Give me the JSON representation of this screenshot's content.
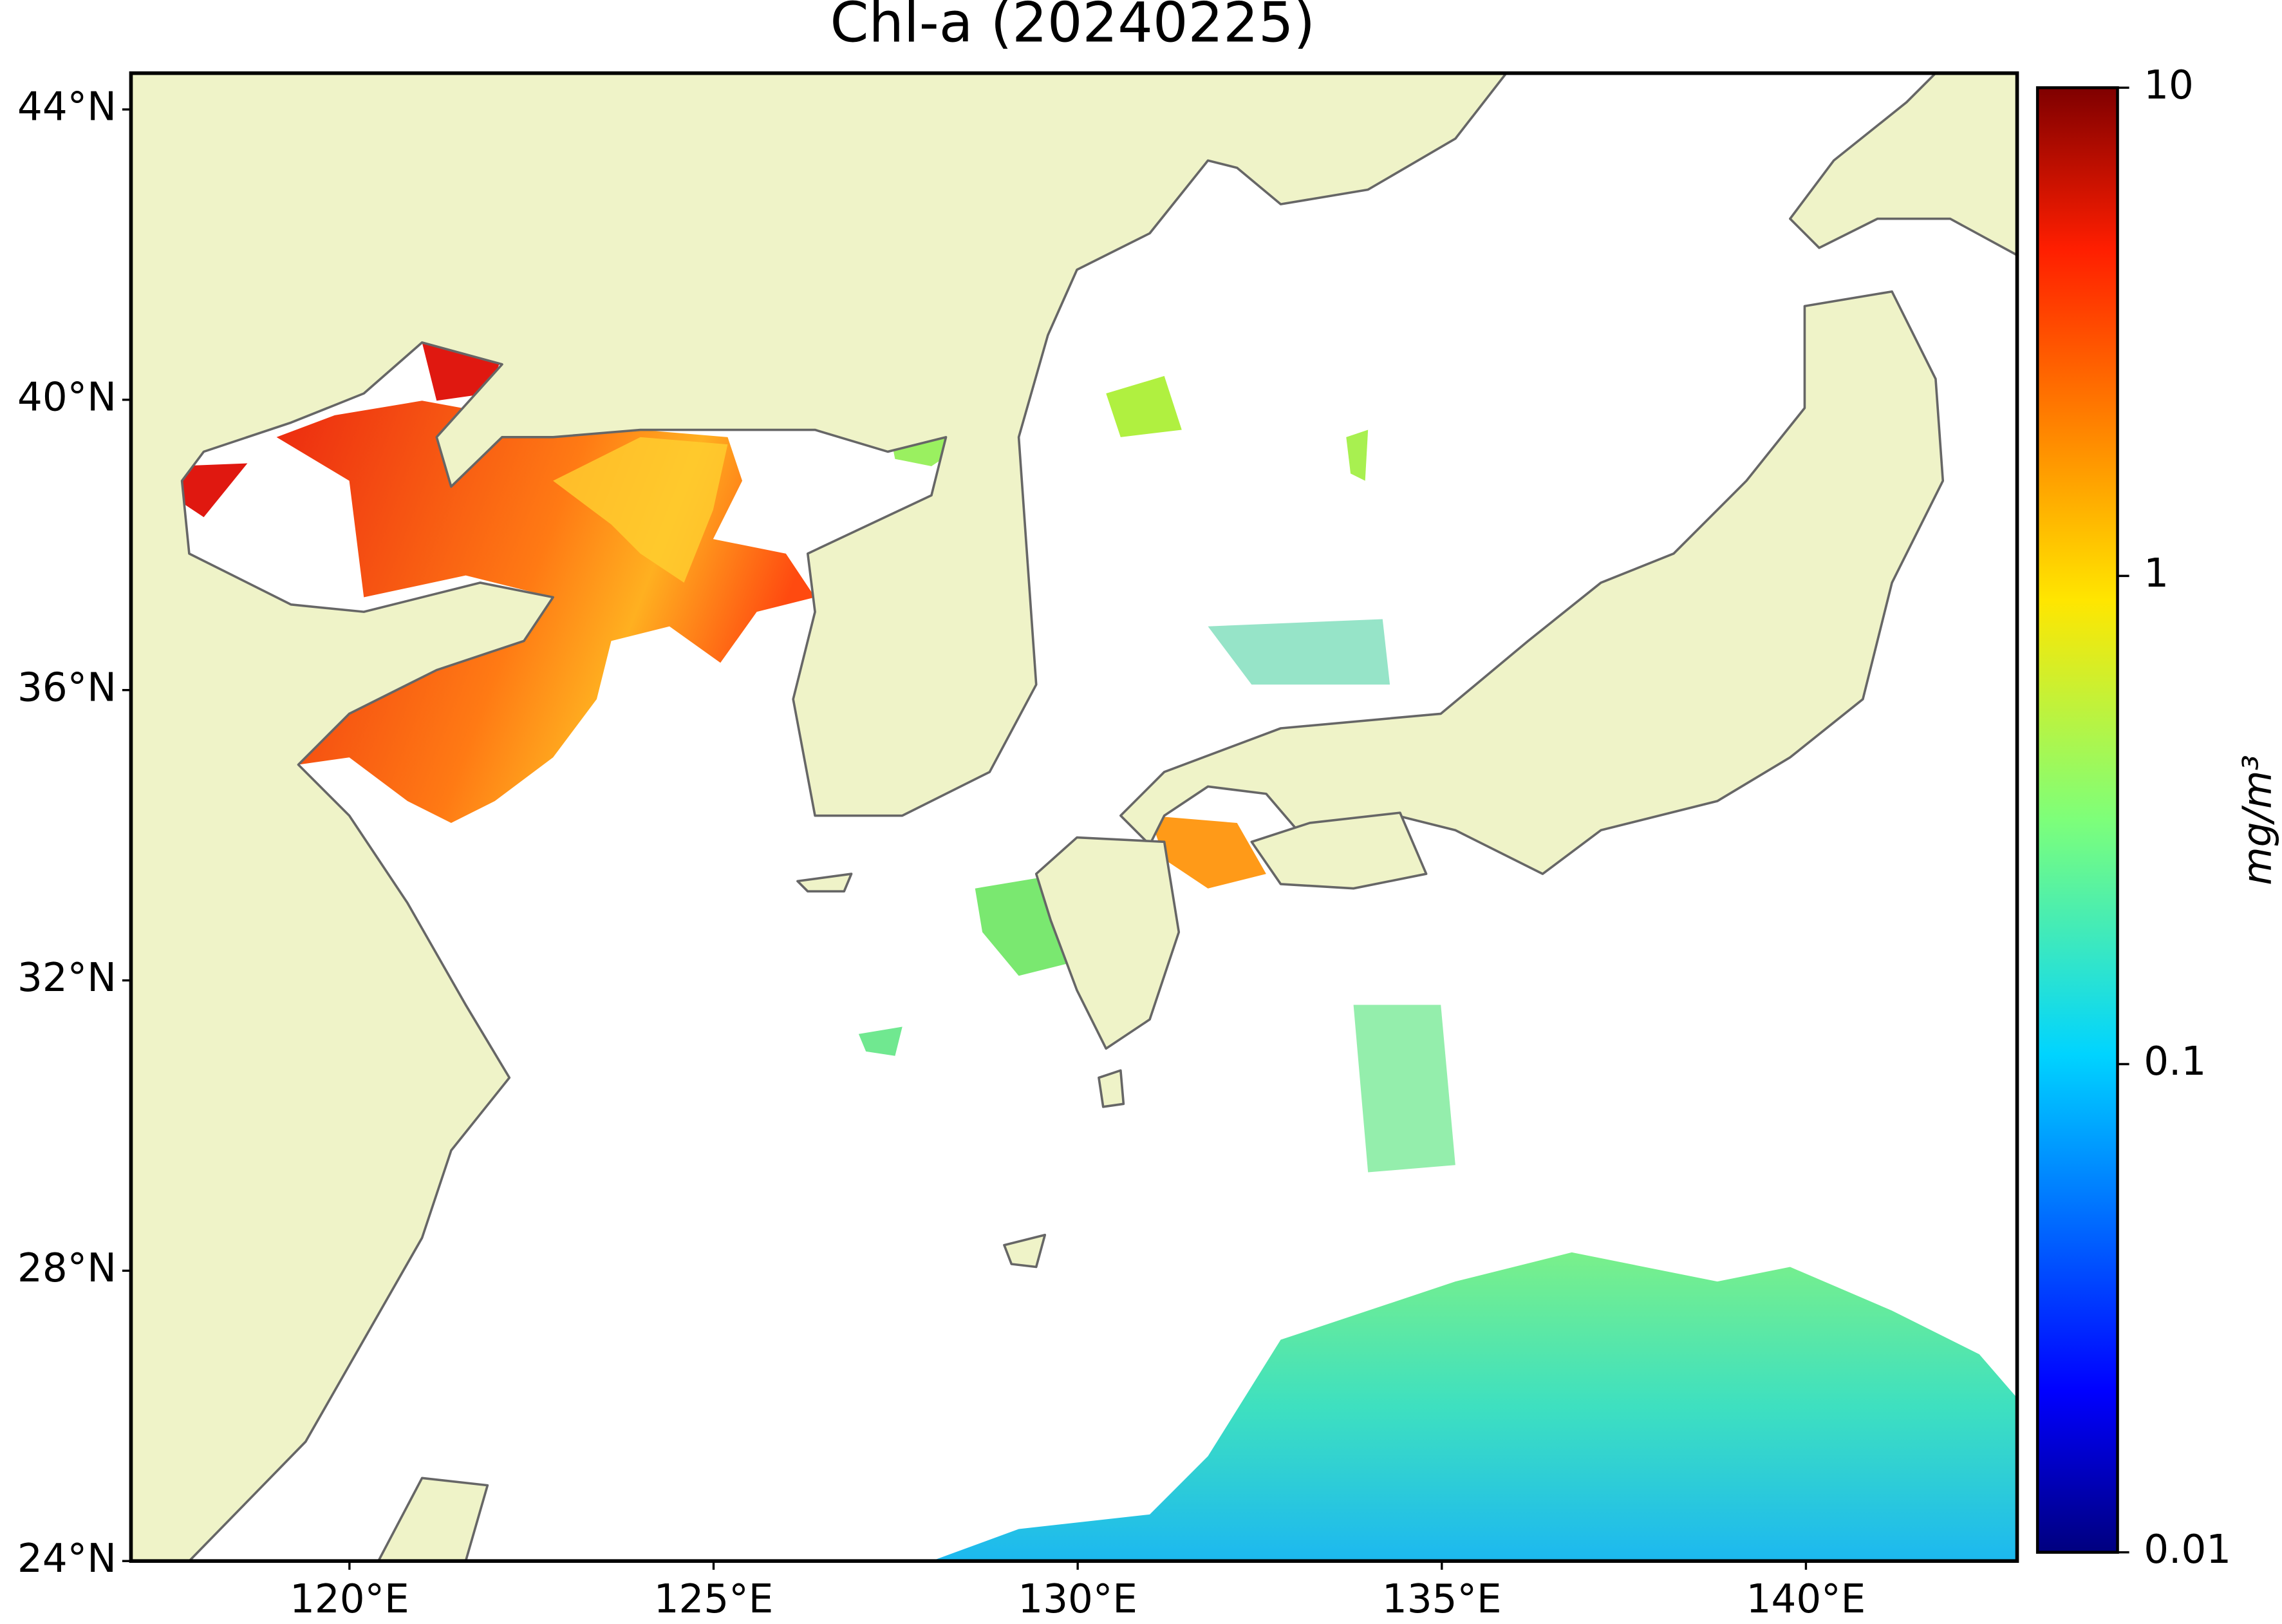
{
  "title": "Chl-a (20240225)",
  "map": {
    "xlim": [
      117,
      142.9
    ],
    "ylim": [
      24,
      44.5
    ],
    "xticks": [
      {
        "value": 120,
        "label": "120°E"
      },
      {
        "value": 125,
        "label": "125°E"
      },
      {
        "value": 130,
        "label": "130°E"
      },
      {
        "value": 135,
        "label": "135°E"
      },
      {
        "value": 140,
        "label": "140°E"
      }
    ],
    "yticks": [
      {
        "value": 24,
        "label": "24°N"
      },
      {
        "value": 28,
        "label": "28°N"
      },
      {
        "value": 32,
        "label": "32°N"
      },
      {
        "value": 36,
        "label": "36°N"
      },
      {
        "value": 40,
        "label": "40°N"
      },
      {
        "value": 44,
        "label": "44°N"
      }
    ]
  },
  "colorbar": {
    "scale": "log",
    "lim": [
      0.01,
      10
    ],
    "ticks": [
      0.01,
      0.1,
      1,
      10
    ],
    "label": "mg/m³",
    "colormap": "jet"
  }
}
